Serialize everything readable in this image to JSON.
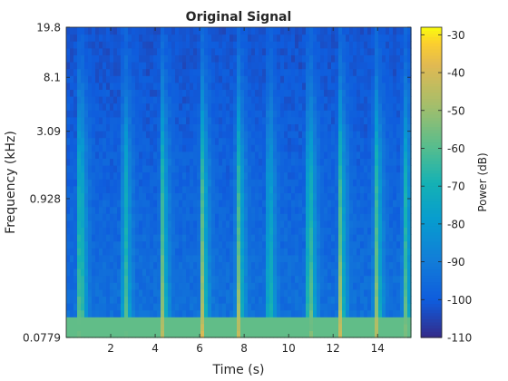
{
  "chart_data": {
    "type": "heatmap",
    "title": "Original Signal",
    "xlabel": "Time (s)",
    "ylabel": "Frequency (kHz)",
    "xlim": [
      0,
      15.5
    ],
    "x_ticks": [
      2,
      4,
      6,
      8,
      10,
      12,
      14
    ],
    "x_tick_labels": [
      "2",
      "4",
      "6",
      "8",
      "10",
      "12",
      "14"
    ],
    "y_scale": "log",
    "ylim": [
      0.0779,
      19.8
    ],
    "y_ticks": [
      0.0779,
      0.928,
      3.09,
      8.1,
      19.8
    ],
    "y_tick_labels": [
      "0.0779",
      "0.928",
      "3.09",
      "8.1",
      "19.8"
    ],
    "colorbar": {
      "label": "Power (dB)",
      "range": [
        -110,
        -28
      ],
      "ticks": [
        -110,
        -100,
        -90,
        -80,
        -70,
        -60,
        -50,
        -40,
        -30
      ],
      "tick_labels": [
        "-110",
        "-100",
        "-90",
        "-80",
        "-70",
        "-60",
        "-50",
        "-40",
        "-30"
      ],
      "colormap": "parula"
    },
    "features": {
      "background_power_db": -103,
      "low_band_power_db": -58,
      "low_band_top_khz": 0.11,
      "transients": [
        {
          "time_s": 0.6,
          "peak_db": -36
        },
        {
          "time_s": 2.6,
          "peak_db": -40
        },
        {
          "time_s": 4.3,
          "peak_db": -40
        },
        {
          "time_s": 6.1,
          "peak_db": -36
        },
        {
          "time_s": 7.7,
          "peak_db": -32
        },
        {
          "time_s": 9.1,
          "peak_db": -48
        },
        {
          "time_s": 10.9,
          "peak_db": -30
        },
        {
          "time_s": 12.3,
          "peak_db": -38
        },
        {
          "time_s": 13.9,
          "peak_db": -34
        },
        {
          "time_s": 15.2,
          "peak_db": -42
        }
      ]
    }
  }
}
